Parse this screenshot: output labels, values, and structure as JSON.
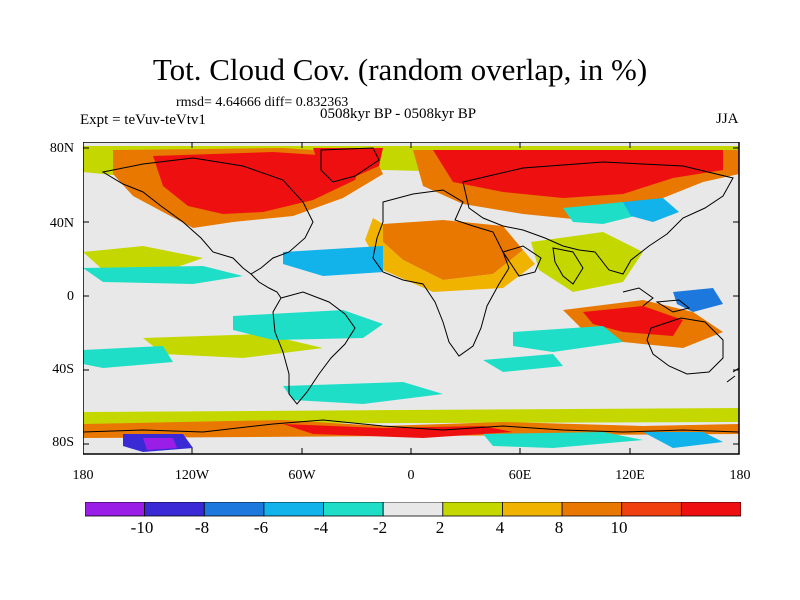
{
  "title": "Tot. Cloud Cov. (random overlap, in %)",
  "stats": "rmsd= 4.64666 diff= 0.832363",
  "expt": "Expt = teVuv-teVtv1",
  "period": "0508kyr BP - 0508kyr BP",
  "season": "JJA",
  "lat_labels": [
    "80N",
    "40N",
    "0",
    "40S",
    "80S"
  ],
  "lon_labels": [
    "180",
    "120W",
    "60W",
    "0",
    "60E",
    "120E",
    "180"
  ],
  "colorbar": {
    "labels": [
      "-10",
      "-8",
      "-6",
      "-4",
      "-2",
      "2",
      "4",
      "8",
      "10"
    ],
    "colors": [
      "#9a1ee6",
      "#3a2ad6",
      "#1c78dc",
      "#12b2ea",
      "#1fdec8",
      "#e8e8e8",
      "#c4d800",
      "#f0b400",
      "#e87800",
      "#f04010",
      "#ee1010"
    ]
  },
  "map_colors": {
    "neutral": "#e8e8e8",
    "strong_positive": "#ee1010",
    "positive": "#e87800",
    "moderate_positive": "#f0b400",
    "weak_positive": "#c4d800",
    "weak_negative": "#1fdec8",
    "negative": "#12b2ea",
    "strong_negative": "#1c78dc",
    "very_strong_negative": "#3a2ad6",
    "extreme_negative": "#9a1ee6",
    "coastline": "#000000"
  }
}
